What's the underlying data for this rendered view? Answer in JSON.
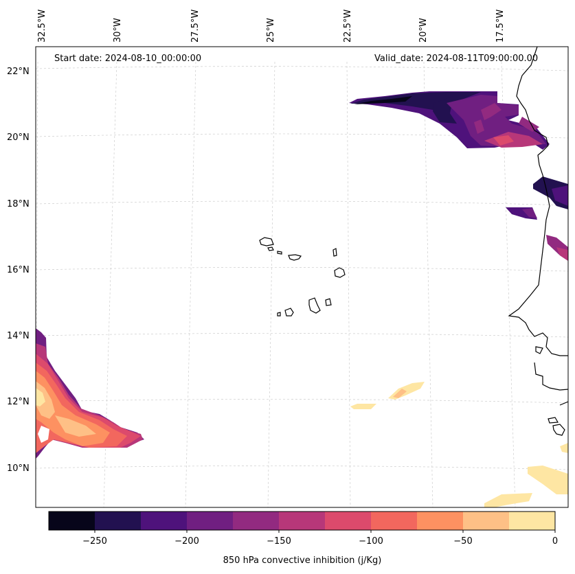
{
  "map": {
    "start_date": "Start date: 2024-08-10_00:00:00",
    "valid_date": "Valid_date: 2024-08-11T09:00:00.00",
    "lon_labels": [
      "32.5°W",
      "30°W",
      "27.5°W",
      "25°W",
      "22.5°W",
      "20°W",
      "17.5°W"
    ],
    "lat_labels": [
      "22°N",
      "20°N",
      "18°N",
      "16°N",
      "14°N",
      "12°N",
      "10°N"
    ]
  },
  "colorbar": {
    "label": "850 hPa convective inhibition (j/Kg)",
    "ticks": [
      "−250",
      "−200",
      "−150",
      "−100",
      "−50",
      "0"
    ],
    "colors": [
      "#07051a",
      "#221150",
      "#4e127b",
      "#701f81",
      "#922a80",
      "#b73779",
      "#dc4a6c",
      "#f2675e",
      "#fd9161",
      "#fec086",
      "#fee6a3"
    ]
  },
  "chart_data": {
    "type": "heatmap",
    "title": "850 hPa convective inhibition",
    "units": "j/Kg",
    "levels": [
      -275,
      -250,
      -225,
      -200,
      -175,
      -150,
      -125,
      -100,
      -75,
      -50,
      -25,
      0
    ],
    "lon_range": [
      -33,
      -16
    ],
    "lat_range": [
      9,
      22.7
    ],
    "regions": [
      {
        "name": "north band",
        "lat": [
          19.5,
          21.5
        ],
        "lon": [
          -22.5,
          -16.5
        ],
        "values": "-260 to -125"
      },
      {
        "name": "mauritania patch",
        "lat": [
          17.5,
          18.8
        ],
        "lon": [
          -17.2,
          -16
        ],
        "values": "-240 to -175"
      },
      {
        "name": "southwest area",
        "lat": [
          10.5,
          14.3
        ],
        "lon": [
          -33,
          -29.5
        ],
        "values": "-250 to -25"
      },
      {
        "name": "southeast area",
        "lat": [
          9,
          11.5
        ],
        "lon": [
          -18,
          -16
        ],
        "values": "-25 to 0"
      }
    ]
  }
}
